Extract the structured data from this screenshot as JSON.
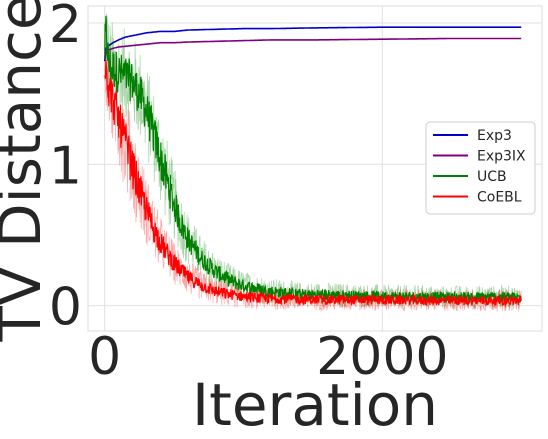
{
  "chart_data": {
    "type": "line",
    "title": "",
    "xlabel": "Iteration",
    "ylabel": "TV Distance",
    "xlim": [
      -120,
      3150
    ],
    "ylim": [
      -0.18,
      2.12
    ],
    "xticks": [
      0,
      2000
    ],
    "xtick_labels": [
      "0",
      "2000"
    ],
    "yticks": [
      0,
      1,
      2
    ],
    "ytick_labels": [
      "0",
      "1",
      "2"
    ],
    "grid": true,
    "legend_position": "center-right",
    "series": [
      {
        "name": "Exp3",
        "color": "#0000cc",
        "x": [
          0,
          10,
          30,
          60,
          100,
          150,
          200,
          300,
          400,
          500,
          600,
          800,
          1000,
          1200,
          1500,
          2000,
          2500,
          3000
        ],
        "y": [
          1.73,
          1.82,
          1.84,
          1.86,
          1.88,
          1.9,
          1.91,
          1.93,
          1.94,
          1.94,
          1.95,
          1.955,
          1.96,
          1.96,
          1.965,
          1.97,
          1.97,
          1.97
        ]
      },
      {
        "name": "Exp3IX",
        "color": "#800080",
        "x": [
          0,
          10,
          30,
          60,
          100,
          150,
          200,
          300,
          400,
          500,
          600,
          800,
          1000,
          1200,
          1500,
          2000,
          2500,
          3000
        ],
        "y": [
          1.75,
          1.8,
          1.81,
          1.82,
          1.83,
          1.835,
          1.84,
          1.85,
          1.86,
          1.86,
          1.865,
          1.87,
          1.875,
          1.88,
          1.88,
          1.885,
          1.89,
          1.89
        ]
      },
      {
        "name": "UCB",
        "color": "#008000",
        "x": [
          0,
          10,
          30,
          60,
          100,
          150,
          200,
          250,
          300,
          350,
          400,
          450,
          500,
          550,
          600,
          700,
          800,
          900,
          1000,
          1100,
          1200,
          1400,
          1600,
          1800,
          2000,
          2400,
          2800,
          3000
        ],
        "y": [
          1.8,
          1.95,
          1.7,
          1.68,
          1.65,
          1.62,
          1.58,
          1.5,
          1.38,
          1.22,
          1.05,
          0.88,
          0.72,
          0.58,
          0.47,
          0.33,
          0.24,
          0.18,
          0.14,
          0.12,
          0.1,
          0.08,
          0.075,
          0.07,
          0.065,
          0.06,
          0.06,
          0.06
        ]
      },
      {
        "name": "CoEBL",
        "color": "#ff0000",
        "x": [
          0,
          10,
          30,
          60,
          100,
          150,
          200,
          250,
          300,
          350,
          400,
          450,
          500,
          550,
          600,
          700,
          800,
          900,
          1000,
          1100,
          1200,
          1400,
          1600,
          1800,
          2000,
          2400,
          2800,
          3000
        ],
        "y": [
          1.75,
          1.7,
          1.55,
          1.45,
          1.32,
          1.15,
          0.98,
          0.82,
          0.68,
          0.55,
          0.45,
          0.37,
          0.3,
          0.25,
          0.2,
          0.14,
          0.1,
          0.08,
          0.065,
          0.055,
          0.05,
          0.045,
          0.04,
          0.04,
          0.04,
          0.035,
          0.035,
          0.035
        ]
      }
    ]
  }
}
